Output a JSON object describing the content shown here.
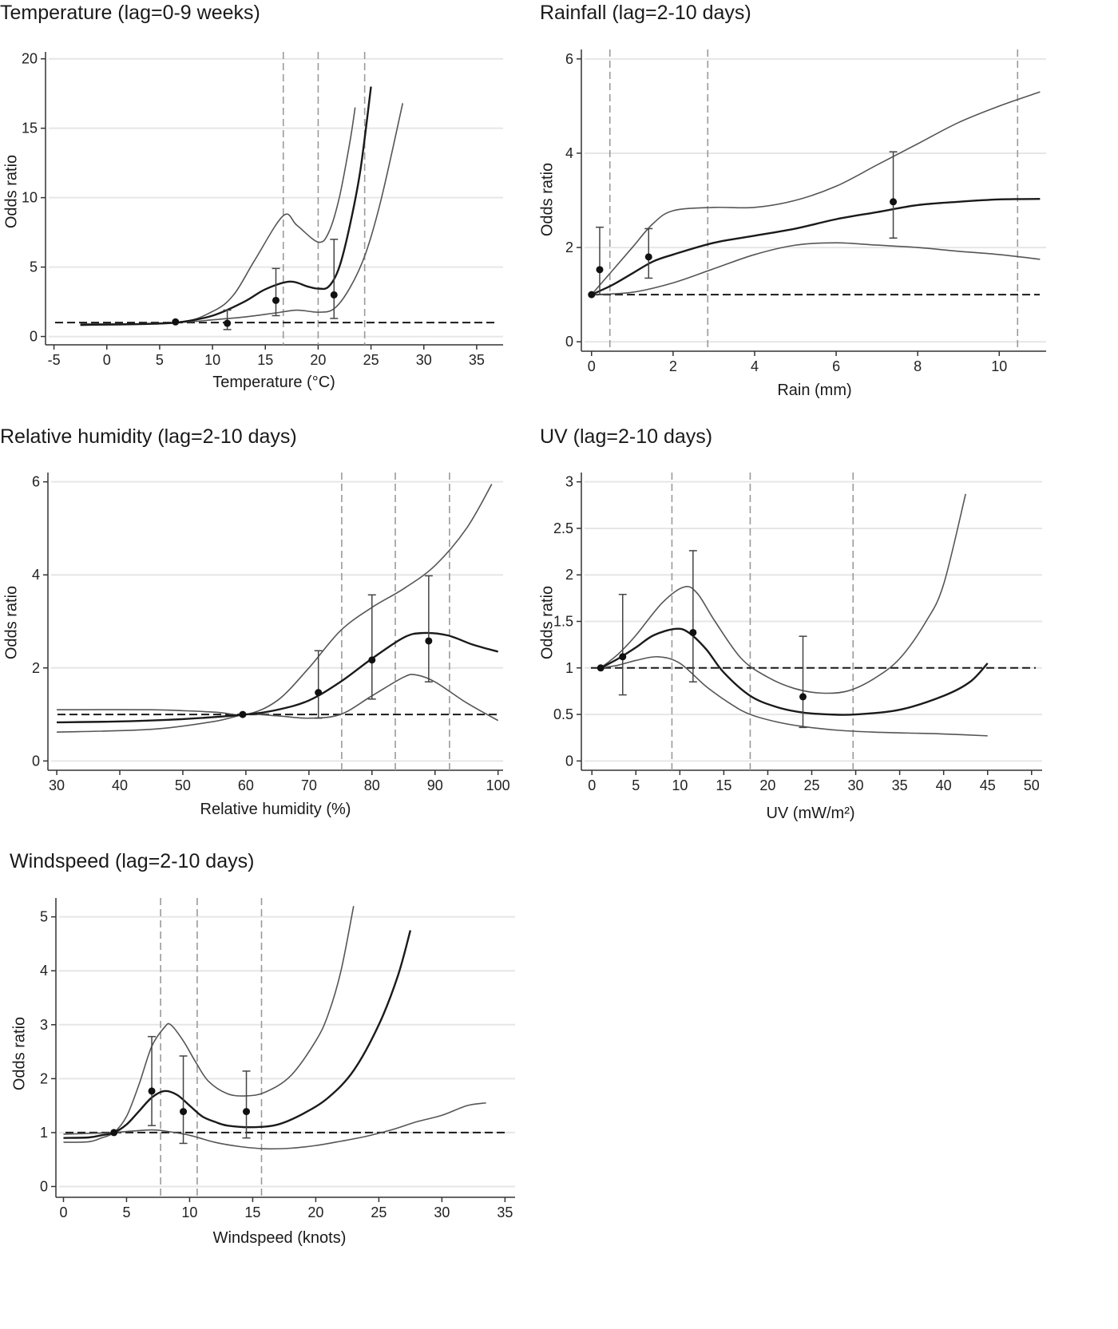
{
  "chart_data": [
    {
      "type": "line",
      "title": "Temperature (lag=0-9 weeks)",
      "xlabel": "Temperature (°C)",
      "ylabel": "Odds ratio",
      "xlim": [
        -5.8,
        37.5
      ],
      "ylim": [
        -0.6,
        20.5
      ],
      "xticks": [
        -5,
        0,
        5,
        10,
        15,
        20,
        25,
        30,
        35
      ],
      "yticks": [
        0,
        5,
        10,
        15,
        20
      ],
      "grid": "horizontal",
      "reference_line": 1,
      "knots": [
        16.7,
        20,
        24.4
      ],
      "estimate": [
        [
          -2.5,
          0.85
        ],
        [
          2,
          0.88
        ],
        [
          6.5,
          1.0
        ],
        [
          10,
          1.5
        ],
        [
          13,
          2.5
        ],
        [
          15,
          3.4
        ],
        [
          17.3,
          3.95
        ],
        [
          19,
          3.6
        ],
        [
          20,
          3.45
        ],
        [
          21,
          3.6
        ],
        [
          22,
          5
        ],
        [
          23,
          8
        ],
        [
          24,
          12
        ],
        [
          25,
          18
        ]
      ],
      "upper": [
        [
          -2.5,
          0.9
        ],
        [
          6.5,
          1.0
        ],
        [
          10,
          1.8
        ],
        [
          12,
          3
        ],
        [
          14,
          5.5
        ],
        [
          16.7,
          8.7
        ],
        [
          18,
          8
        ],
        [
          20,
          6.8
        ],
        [
          21,
          7.5
        ],
        [
          22,
          10
        ],
        [
          23,
          14
        ],
        [
          23.5,
          16.5
        ]
      ],
      "lower": [
        [
          -2.5,
          0.8
        ],
        [
          6.5,
          1.0
        ],
        [
          10,
          1.2
        ],
        [
          13,
          1.4
        ],
        [
          16,
          1.7
        ],
        [
          18,
          1.9
        ],
        [
          20,
          1.75
        ],
        [
          21.5,
          2
        ],
        [
          23,
          3.5
        ],
        [
          24.5,
          6
        ],
        [
          26,
          10
        ],
        [
          28,
          16.8
        ]
      ],
      "points": [
        {
          "x": 6.5,
          "y": 1.05
        },
        {
          "x": 11.4,
          "y": 0.95,
          "lo": 0.5,
          "hi": 1.9
        },
        {
          "x": 16,
          "y": 2.6,
          "lo": 1.5,
          "hi": 4.9
        },
        {
          "x": 21.5,
          "y": 3.0,
          "lo": 1.3,
          "hi": 7.0
        }
      ]
    },
    {
      "type": "line",
      "title": "Rainfall (lag=2-10 days)",
      "xlabel": "Rain (mm)",
      "ylabel": "Odds ratio",
      "xlim": [
        -0.25,
        11.15
      ],
      "ylim": [
        -0.2,
        6.2
      ],
      "xticks": [
        0,
        2,
        4,
        6,
        8,
        10
      ],
      "yticks": [
        0,
        2,
        4,
        6
      ],
      "grid": "horizontal",
      "reference_line": 1,
      "knots": [
        0.45,
        2.85,
        10.45
      ],
      "estimate": [
        [
          0,
          1.0
        ],
        [
          0.5,
          1.2
        ],
        [
          1,
          1.45
        ],
        [
          1.5,
          1.7
        ],
        [
          2,
          1.85
        ],
        [
          3,
          2.1
        ],
        [
          4,
          2.25
        ],
        [
          5,
          2.4
        ],
        [
          6,
          2.6
        ],
        [
          7,
          2.75
        ],
        [
          8,
          2.9
        ],
        [
          9,
          2.97
        ],
        [
          10,
          3.02
        ],
        [
          11,
          3.03
        ]
      ],
      "upper": [
        [
          0,
          1.0
        ],
        [
          0.5,
          1.5
        ],
        [
          1,
          2.0
        ],
        [
          1.5,
          2.5
        ],
        [
          2,
          2.78
        ],
        [
          3,
          2.85
        ],
        [
          4,
          2.85
        ],
        [
          5,
          3.0
        ],
        [
          6,
          3.3
        ],
        [
          7,
          3.75
        ],
        [
          8,
          4.2
        ],
        [
          9,
          4.65
        ],
        [
          10,
          5.0
        ],
        [
          11,
          5.3
        ]
      ],
      "lower": [
        [
          0,
          1.0
        ],
        [
          1,
          1.05
        ],
        [
          2,
          1.25
        ],
        [
          3,
          1.55
        ],
        [
          4,
          1.85
        ],
        [
          5,
          2.05
        ],
        [
          6,
          2.1
        ],
        [
          7,
          2.05
        ],
        [
          8,
          2.0
        ],
        [
          9,
          1.92
        ],
        [
          10,
          1.85
        ],
        [
          11,
          1.75
        ]
      ],
      "points": [
        {
          "x": 0,
          "y": 1.0
        },
        {
          "x": 0.2,
          "y": 1.53,
          "lo": 1.0,
          "hi": 2.43
        },
        {
          "x": 1.4,
          "y": 1.8,
          "lo": 1.35,
          "hi": 2.4
        },
        {
          "x": 7.4,
          "y": 2.97,
          "lo": 2.2,
          "hi": 4.03
        }
      ]
    },
    {
      "type": "line",
      "title": "Relative humidity (lag=2-10 days)",
      "xlabel": "Relative humidity (%)",
      "ylabel": "Odds ratio",
      "xlim": [
        28.6,
        100.8
      ],
      "ylim": [
        -0.2,
        6.2
      ],
      "xticks": [
        30,
        40,
        50,
        60,
        70,
        80,
        90,
        100
      ],
      "yticks": [
        0,
        2,
        4,
        6
      ],
      "grid": "horizontal",
      "reference_line": 1,
      "knots": [
        75.2,
        83.7,
        92.3
      ],
      "estimate": [
        [
          30,
          0.83
        ],
        [
          40,
          0.85
        ],
        [
          50,
          0.9
        ],
        [
          60,
          1.0
        ],
        [
          65,
          1.1
        ],
        [
          70,
          1.3
        ],
        [
          75,
          1.7
        ],
        [
          80,
          2.2
        ],
        [
          85,
          2.65
        ],
        [
          88,
          2.75
        ],
        [
          92,
          2.7
        ],
        [
          96,
          2.5
        ],
        [
          100,
          2.35
        ]
      ],
      "upper": [
        [
          30,
          1.1
        ],
        [
          45,
          1.1
        ],
        [
          55,
          1.05
        ],
        [
          60,
          1.0
        ],
        [
          65,
          1.3
        ],
        [
          70,
          2.0
        ],
        [
          75,
          2.8
        ],
        [
          80,
          3.3
        ],
        [
          85,
          3.7
        ],
        [
          90,
          4.2
        ],
        [
          95,
          5.0
        ],
        [
          99,
          5.95
        ]
      ],
      "lower": [
        [
          30,
          0.62
        ],
        [
          45,
          0.68
        ],
        [
          55,
          0.85
        ],
        [
          60,
          1.0
        ],
        [
          65,
          0.97
        ],
        [
          70,
          0.92
        ],
        [
          75,
          1.0
        ],
        [
          80,
          1.4
        ],
        [
          85,
          1.8
        ],
        [
          87,
          1.85
        ],
        [
          90,
          1.7
        ],
        [
          95,
          1.25
        ],
        [
          100,
          0.87
        ]
      ],
      "points": [
        {
          "x": 59.5,
          "y": 1.0
        },
        {
          "x": 71.5,
          "y": 1.47,
          "lo": 0.92,
          "hi": 2.37
        },
        {
          "x": 80,
          "y": 2.17,
          "lo": 1.33,
          "hi": 3.57
        },
        {
          "x": 89,
          "y": 2.58,
          "lo": 1.7,
          "hi": 3.98
        }
      ]
    },
    {
      "type": "line",
      "title": "UV (lag=2-10 days)",
      "xlabel": "UV (mW/m²)",
      "ylabel": "Odds ratio",
      "xlim": [
        -1.2,
        51.2
      ],
      "ylim": [
        -0.1,
        3.1
      ],
      "xticks": [
        0,
        5,
        10,
        15,
        20,
        25,
        30,
        35,
        40,
        45,
        50
      ],
      "yticks": [
        0,
        0.5,
        1,
        1.5,
        2,
        2.5,
        3
      ],
      "grid": "horizontal",
      "reference_line": 1,
      "knots": [
        9.1,
        18,
        29.7
      ],
      "estimate": [
        [
          1,
          1.0
        ],
        [
          3,
          1.1
        ],
        [
          5,
          1.22
        ],
        [
          7,
          1.35
        ],
        [
          9.5,
          1.42
        ],
        [
          11,
          1.38
        ],
        [
          13,
          1.2
        ],
        [
          15,
          0.95
        ],
        [
          18,
          0.7
        ],
        [
          21,
          0.58
        ],
        [
          24,
          0.52
        ],
        [
          27,
          0.5
        ],
        [
          30,
          0.5
        ],
        [
          35,
          0.55
        ],
        [
          40,
          0.7
        ],
        [
          43,
          0.85
        ],
        [
          45,
          1.05
        ]
      ],
      "upper": [
        [
          1,
          1.0
        ],
        [
          3,
          1.15
        ],
        [
          5,
          1.35
        ],
        [
          8,
          1.7
        ],
        [
          10.5,
          1.87
        ],
        [
          12,
          1.8
        ],
        [
          14,
          1.5
        ],
        [
          17,
          1.1
        ],
        [
          20,
          0.9
        ],
        [
          23,
          0.78
        ],
        [
          26,
          0.73
        ],
        [
          29,
          0.75
        ],
        [
          32,
          0.88
        ],
        [
          35,
          1.1
        ],
        [
          38,
          1.5
        ],
        [
          40,
          1.9
        ],
        [
          42.5,
          2.87
        ]
      ],
      "lower": [
        [
          1,
          1.0
        ],
        [
          3,
          1.03
        ],
        [
          5,
          1.08
        ],
        [
          7.5,
          1.12
        ],
        [
          10,
          1.05
        ],
        [
          13,
          0.8
        ],
        [
          16,
          0.6
        ],
        [
          18,
          0.5
        ],
        [
          21,
          0.42
        ],
        [
          24,
          0.37
        ],
        [
          28,
          0.33
        ],
        [
          32,
          0.31
        ],
        [
          36,
          0.3
        ],
        [
          40,
          0.29
        ],
        [
          45,
          0.27
        ]
      ],
      "points": [
        {
          "x": 1,
          "y": 1.0
        },
        {
          "x": 3.5,
          "y": 1.12,
          "lo": 0.71,
          "hi": 1.79
        },
        {
          "x": 11.5,
          "y": 1.38,
          "lo": 0.85,
          "hi": 2.26
        },
        {
          "x": 24,
          "y": 0.69,
          "lo": 0.36,
          "hi": 1.34
        }
      ]
    },
    {
      "type": "line",
      "title": "Windspeed (lag=2-10 days)",
      "xlabel": "Windspeed (knots)",
      "ylabel": "Odds ratio",
      "xlim": [
        -0.6,
        35.8
      ],
      "ylim": [
        -0.2,
        5.35
      ],
      "xticks": [
        0,
        5,
        10,
        15,
        20,
        25,
        30,
        35
      ],
      "yticks": [
        0,
        1,
        2,
        3,
        4,
        5
      ],
      "grid": "horizontal",
      "reference_line": 1,
      "knots": [
        7.7,
        10.6,
        15.7
      ],
      "estimate": [
        [
          0,
          0.9
        ],
        [
          2,
          0.91
        ],
        [
          3,
          0.95
        ],
        [
          4,
          1.0
        ],
        [
          5,
          1.15
        ],
        [
          6,
          1.4
        ],
        [
          7,
          1.65
        ],
        [
          8,
          1.77
        ],
        [
          9,
          1.7
        ],
        [
          10,
          1.5
        ],
        [
          11,
          1.3
        ],
        [
          12,
          1.2
        ],
        [
          13,
          1.13
        ],
        [
          15,
          1.1
        ],
        [
          17,
          1.15
        ],
        [
          19,
          1.35
        ],
        [
          21,
          1.65
        ],
        [
          23,
          2.15
        ],
        [
          25,
          3.0
        ],
        [
          26.5,
          3.9
        ],
        [
          27.5,
          4.75
        ]
      ],
      "upper": [
        [
          0,
          0.82
        ],
        [
          2,
          0.83
        ],
        [
          3,
          0.9
        ],
        [
          4,
          1.0
        ],
        [
          5,
          1.3
        ],
        [
          6,
          1.9
        ],
        [
          7,
          2.6
        ],
        [
          8,
          2.95
        ],
        [
          8.5,
          3.0
        ],
        [
          9.5,
          2.7
        ],
        [
          10.5,
          2.3
        ],
        [
          11.5,
          1.95
        ],
        [
          13,
          1.72
        ],
        [
          14.5,
          1.68
        ],
        [
          16,
          1.75
        ],
        [
          18,
          2.05
        ],
        [
          20,
          2.7
        ],
        [
          21,
          3.2
        ],
        [
          22,
          4.0
        ],
        [
          23,
          5.2
        ]
      ],
      "lower": [
        [
          0,
          0.97
        ],
        [
          3,
          0.99
        ],
        [
          4,
          1.0
        ],
        [
          5,
          1.02
        ],
        [
          7,
          1.05
        ],
        [
          8,
          1.03
        ],
        [
          10,
          0.95
        ],
        [
          12,
          0.82
        ],
        [
          14,
          0.74
        ],
        [
          16,
          0.7
        ],
        [
          18,
          0.71
        ],
        [
          20,
          0.76
        ],
        [
          22,
          0.84
        ],
        [
          24,
          0.93
        ],
        [
          26,
          1.05
        ],
        [
          28,
          1.2
        ],
        [
          30,
          1.32
        ],
        [
          32,
          1.5
        ],
        [
          33.5,
          1.55
        ]
      ],
      "points": [
        {
          "x": 4,
          "y": 1.0
        },
        {
          "x": 7,
          "y": 1.77,
          "lo": 1.13,
          "hi": 2.78
        },
        {
          "x": 9.5,
          "y": 1.39,
          "lo": 0.8,
          "hi": 2.42
        },
        {
          "x": 14.5,
          "y": 1.39,
          "lo": 0.9,
          "hi": 2.14
        }
      ]
    }
  ],
  "colors": {
    "estimate": "#1a1a1a",
    "ci": "#555555",
    "knot": "#9a9a9a",
    "grid": "#e6e6e6",
    "reference": "#1a1a1a"
  }
}
